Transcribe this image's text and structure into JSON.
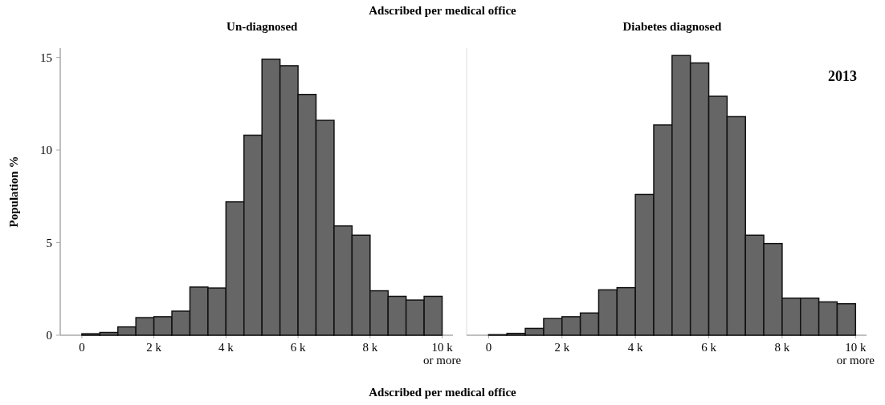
{
  "chart_data": [
    {
      "type": "histogram",
      "title": "Un-diagnosed",
      "ylabel": "Population %",
      "xlabel": "Adscribed per medical office",
      "annotations": [
        "Adscribed per medical office"
      ],
      "bins": [
        0,
        0.5,
        1,
        1.5,
        2,
        2.5,
        3,
        3.5,
        4,
        4.5,
        5,
        5.5,
        6,
        6.5,
        7,
        7.5,
        8,
        8.5,
        9,
        9.5,
        10
      ],
      "values": [
        0.08,
        0.15,
        0.45,
        0.95,
        1.0,
        1.3,
        2.6,
        2.55,
        7.2,
        10.8,
        14.9,
        14.55,
        13.0,
        11.6,
        5.9,
        5.4,
        2.4,
        2.1,
        1.9,
        2.1
      ],
      "color": "#666666",
      "xlim": [
        -0.6,
        10.3
      ],
      "ylim": [
        0,
        15.5
      ],
      "xticks": [
        {
          "value": 0,
          "label": "0"
        },
        {
          "value": 2,
          "label": "2 k"
        },
        {
          "value": 4,
          "label": "4 k"
        },
        {
          "value": 6,
          "label": "6 k"
        },
        {
          "value": 8,
          "label": "8 k"
        },
        {
          "value": 10,
          "label": "10 k\nor more"
        }
      ],
      "yticks": [
        0,
        5,
        10,
        15
      ]
    },
    {
      "type": "histogram",
      "title": "Diabetes diagnosed",
      "annotations": [
        "2013"
      ],
      "tick_labels": "x",
      "bins": [
        0,
        0.5,
        1,
        1.5,
        2,
        2.5,
        3,
        3.5,
        4,
        4.5,
        5,
        5.5,
        6,
        6.5,
        7,
        7.5,
        8,
        8.5,
        9,
        9.5,
        10
      ],
      "values": [
        0.03,
        0.1,
        0.37,
        0.9,
        1.0,
        1.2,
        2.45,
        2.57,
        7.6,
        11.35,
        15.1,
        14.7,
        12.9,
        11.8,
        5.4,
        4.95,
        2.0,
        2.0,
        1.8,
        1.7
      ],
      "color": "#666666",
      "xlim": [
        -0.6,
        10.3
      ],
      "ylim": [
        0,
        15.5
      ],
      "xticks": [
        {
          "value": 0,
          "label": "0"
        },
        {
          "value": 2,
          "label": "2 k"
        },
        {
          "value": 4,
          "label": "4 k"
        },
        {
          "value": 6,
          "label": "6 k"
        },
        {
          "value": 8,
          "label": "8 k"
        },
        {
          "value": 10,
          "label": "10 k\nor more"
        }
      ],
      "yticks": [
        0,
        5,
        10,
        15
      ]
    }
  ]
}
